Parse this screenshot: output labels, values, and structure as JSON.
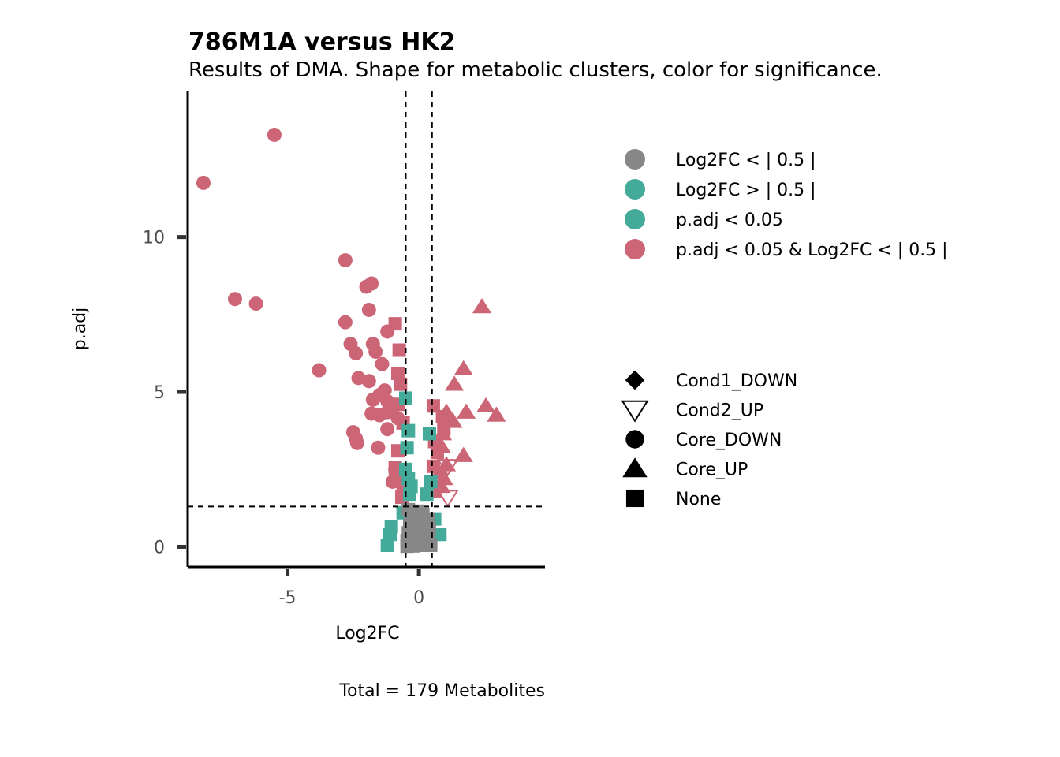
{
  "chart_data": {
    "type": "scatter",
    "title": "786M1A versus HK2",
    "subtitle": "Results of DMA. Shape for metabolic clusters, color for significance.",
    "xlabel": "Log2FC",
    "ylabel": "p.adj",
    "caption": "Total = 179 Metabolites",
    "xlim": [
      -8.8,
      4.8
    ],
    "ylim": [
      -0.65,
      14.7
    ],
    "x_ticks": [
      -5,
      0
    ],
    "x_tick_labels": [
      "-5",
      "0"
    ],
    "y_ticks": [
      0,
      5,
      10
    ],
    "y_tick_labels": [
      "0",
      "5",
      "10"
    ],
    "grid": false,
    "reference_lines": {
      "vertical": [
        -0.5,
        0.5
      ],
      "horizontal": [
        1.3
      ]
    },
    "colors": {
      "grey": "#878787",
      "teal": "#44AA99",
      "rose": "#CC6677"
    },
    "color_legend": [
      {
        "label": "Log2FC  < | 0.5 |",
        "color": "grey"
      },
      {
        "label": "Log2FC  > | 0.5 |",
        "color": "teal"
      },
      {
        "label": "p.adj  <  0.05",
        "color": "teal"
      },
      {
        "label": "p.adj  <  0.05  &  Log2FC  < | 0.5 |",
        "color": "rose"
      }
    ],
    "shape_legend": [
      {
        "label": "Cond1_DOWN",
        "shape": "diamond"
      },
      {
        "label": "Cond2_UP",
        "shape": "triangle-down-open"
      },
      {
        "label": "Core_DOWN",
        "shape": "circle"
      },
      {
        "label": "Core_UP",
        "shape": "triangle-up"
      },
      {
        "label": "None",
        "shape": "square"
      }
    ],
    "legend_position": "right",
    "points": [
      {
        "x": -5.5,
        "y": 13.3,
        "shape": "circle",
        "color": "rose"
      },
      {
        "x": -8.2,
        "y": 11.75,
        "shape": "circle",
        "color": "rose"
      },
      {
        "x": -2.8,
        "y": 9.25,
        "shape": "circle",
        "color": "rose"
      },
      {
        "x": -1.8,
        "y": 8.5,
        "shape": "circle",
        "color": "rose"
      },
      {
        "x": -2.0,
        "y": 8.4,
        "shape": "circle",
        "color": "rose"
      },
      {
        "x": -7.0,
        "y": 8.0,
        "shape": "circle",
        "color": "rose"
      },
      {
        "x": -6.2,
        "y": 7.85,
        "shape": "circle",
        "color": "rose"
      },
      {
        "x": -1.9,
        "y": 7.65,
        "shape": "circle",
        "color": "rose"
      },
      {
        "x": -2.8,
        "y": 7.25,
        "shape": "circle",
        "color": "rose"
      },
      {
        "x": -1.2,
        "y": 6.95,
        "shape": "circle",
        "color": "rose"
      },
      {
        "x": -2.6,
        "y": 6.55,
        "shape": "circle",
        "color": "rose"
      },
      {
        "x": -1.75,
        "y": 6.55,
        "shape": "circle",
        "color": "rose"
      },
      {
        "x": -2.4,
        "y": 6.25,
        "shape": "circle",
        "color": "rose"
      },
      {
        "x": -1.65,
        "y": 6.3,
        "shape": "circle",
        "color": "rose"
      },
      {
        "x": -1.4,
        "y": 5.9,
        "shape": "circle",
        "color": "rose"
      },
      {
        "x": -3.8,
        "y": 5.7,
        "shape": "circle",
        "color": "rose"
      },
      {
        "x": -2.3,
        "y": 5.45,
        "shape": "circle",
        "color": "rose"
      },
      {
        "x": -1.9,
        "y": 5.35,
        "shape": "circle",
        "color": "rose"
      },
      {
        "x": -1.3,
        "y": 5.05,
        "shape": "circle",
        "color": "rose"
      },
      {
        "x": -1.5,
        "y": 4.9,
        "shape": "circle",
        "color": "rose"
      },
      {
        "x": -1.75,
        "y": 4.75,
        "shape": "circle",
        "color": "rose"
      },
      {
        "x": -1.2,
        "y": 4.7,
        "shape": "circle",
        "color": "rose"
      },
      {
        "x": -1.0,
        "y": 4.5,
        "shape": "circle",
        "color": "rose"
      },
      {
        "x": -1.2,
        "y": 4.35,
        "shape": "circle",
        "color": "rose"
      },
      {
        "x": -1.8,
        "y": 4.3,
        "shape": "circle",
        "color": "rose"
      },
      {
        "x": -1.5,
        "y": 4.25,
        "shape": "circle",
        "color": "rose"
      },
      {
        "x": -0.8,
        "y": 4.15,
        "shape": "circle",
        "color": "rose"
      },
      {
        "x": -1.2,
        "y": 3.8,
        "shape": "circle",
        "color": "rose"
      },
      {
        "x": -2.5,
        "y": 3.7,
        "shape": "circle",
        "color": "rose"
      },
      {
        "x": -2.4,
        "y": 3.5,
        "shape": "circle",
        "color": "rose"
      },
      {
        "x": -2.35,
        "y": 3.35,
        "shape": "circle",
        "color": "rose"
      },
      {
        "x": -1.55,
        "y": 3.2,
        "shape": "circle",
        "color": "rose"
      },
      {
        "x": -1.0,
        "y": 2.1,
        "shape": "circle",
        "color": "rose"
      },
      {
        "x": -0.9,
        "y": 2.5,
        "shape": "circle",
        "color": "rose"
      },
      {
        "x": -0.9,
        "y": 7.2,
        "shape": "square",
        "color": "rose"
      },
      {
        "x": -0.75,
        "y": 6.35,
        "shape": "square",
        "color": "rose"
      },
      {
        "x": -0.8,
        "y": 5.6,
        "shape": "square",
        "color": "rose"
      },
      {
        "x": -0.7,
        "y": 5.25,
        "shape": "square",
        "color": "rose"
      },
      {
        "x": -0.8,
        "y": 4.6,
        "shape": "square",
        "color": "rose"
      },
      {
        "x": -0.6,
        "y": 4.0,
        "shape": "square",
        "color": "rose"
      },
      {
        "x": -0.8,
        "y": 3.1,
        "shape": "square",
        "color": "rose"
      },
      {
        "x": -0.9,
        "y": 2.55,
        "shape": "square",
        "color": "rose"
      },
      {
        "x": -0.7,
        "y": 2.3,
        "shape": "square",
        "color": "rose"
      },
      {
        "x": -0.6,
        "y": 1.9,
        "shape": "square",
        "color": "rose"
      },
      {
        "x": -0.65,
        "y": 1.6,
        "shape": "square",
        "color": "rose"
      },
      {
        "x": 0.55,
        "y": 4.55,
        "shape": "square",
        "color": "rose"
      },
      {
        "x": 0.9,
        "y": 4.2,
        "shape": "square",
        "color": "rose"
      },
      {
        "x": 0.95,
        "y": 3.8,
        "shape": "square",
        "color": "rose"
      },
      {
        "x": 0.6,
        "y": 3.4,
        "shape": "square",
        "color": "rose"
      },
      {
        "x": 0.7,
        "y": 3.05,
        "shape": "square",
        "color": "rose"
      },
      {
        "x": 0.55,
        "y": 2.6,
        "shape": "square",
        "color": "rose"
      },
      {
        "x": 0.8,
        "y": 2.4,
        "shape": "square",
        "color": "rose"
      },
      {
        "x": 0.6,
        "y": 1.8,
        "shape": "square",
        "color": "rose"
      },
      {
        "x": 2.4,
        "y": 7.75,
        "shape": "triangle-up",
        "color": "rose"
      },
      {
        "x": 1.7,
        "y": 5.75,
        "shape": "triangle-up",
        "color": "rose"
      },
      {
        "x": 1.35,
        "y": 5.25,
        "shape": "triangle-up",
        "color": "rose"
      },
      {
        "x": 2.55,
        "y": 4.55,
        "shape": "triangle-up",
        "color": "rose"
      },
      {
        "x": 2.95,
        "y": 4.25,
        "shape": "triangle-up",
        "color": "rose"
      },
      {
        "x": 1.8,
        "y": 4.35,
        "shape": "triangle-up",
        "color": "rose"
      },
      {
        "x": 1.05,
        "y": 4.35,
        "shape": "triangle-up",
        "color": "rose"
      },
      {
        "x": 1.3,
        "y": 4.05,
        "shape": "triangle-up",
        "color": "rose"
      },
      {
        "x": 0.9,
        "y": 3.65,
        "shape": "triangle-up",
        "color": "rose"
      },
      {
        "x": 0.85,
        "y": 3.25,
        "shape": "triangle-up",
        "color": "rose"
      },
      {
        "x": 1.7,
        "y": 2.95,
        "shape": "triangle-up",
        "color": "rose"
      },
      {
        "x": 1.05,
        "y": 2.65,
        "shape": "triangle-up",
        "color": "rose"
      },
      {
        "x": 0.95,
        "y": 2.2,
        "shape": "triangle-up",
        "color": "rose"
      },
      {
        "x": 0.85,
        "y": 1.95,
        "shape": "triangle-up",
        "color": "rose"
      },
      {
        "x": 1.1,
        "y": 2.6,
        "shape": "triangle-down-open",
        "color": "rose"
      },
      {
        "x": 1.1,
        "y": 1.6,
        "shape": "triangle-down-open",
        "color": "rose"
      },
      {
        "x": -0.5,
        "y": 4.8,
        "shape": "square",
        "color": "teal"
      },
      {
        "x": -0.4,
        "y": 3.75,
        "shape": "square",
        "color": "teal"
      },
      {
        "x": -0.45,
        "y": 3.2,
        "shape": "square",
        "color": "teal"
      },
      {
        "x": -0.5,
        "y": 2.5,
        "shape": "square",
        "color": "teal"
      },
      {
        "x": -0.4,
        "y": 2.2,
        "shape": "square",
        "color": "teal"
      },
      {
        "x": -0.3,
        "y": 1.95,
        "shape": "square",
        "color": "teal"
      },
      {
        "x": -0.35,
        "y": 1.7,
        "shape": "square",
        "color": "teal"
      },
      {
        "x": 0.4,
        "y": 3.65,
        "shape": "square",
        "color": "teal"
      },
      {
        "x": 0.45,
        "y": 2.1,
        "shape": "square",
        "color": "teal"
      },
      {
        "x": 0.3,
        "y": 1.7,
        "shape": "square",
        "color": "teal"
      },
      {
        "x": -0.6,
        "y": 1.1,
        "shape": "square",
        "color": "teal"
      },
      {
        "x": -1.05,
        "y": 0.65,
        "shape": "square",
        "color": "teal"
      },
      {
        "x": -1.1,
        "y": 0.4,
        "shape": "square",
        "color": "teal"
      },
      {
        "x": -1.2,
        "y": 0.05,
        "shape": "square",
        "color": "teal"
      },
      {
        "x": 0.8,
        "y": 0.4,
        "shape": "square",
        "color": "teal"
      },
      {
        "x": 0.6,
        "y": 0.9,
        "shape": "square",
        "color": "teal"
      },
      {
        "x": -0.4,
        "y": 1.2,
        "shape": "square",
        "color": "grey"
      },
      {
        "x": -0.3,
        "y": 0.95,
        "shape": "square",
        "color": "grey"
      },
      {
        "x": -0.35,
        "y": 0.7,
        "shape": "square",
        "color": "grey"
      },
      {
        "x": -0.4,
        "y": 0.45,
        "shape": "square",
        "color": "grey"
      },
      {
        "x": -0.45,
        "y": 0.2,
        "shape": "square",
        "color": "grey"
      },
      {
        "x": -0.45,
        "y": 0.02,
        "shape": "square",
        "color": "grey"
      },
      {
        "x": -0.2,
        "y": 1.1,
        "shape": "square",
        "color": "grey"
      },
      {
        "x": -0.15,
        "y": 0.8,
        "shape": "square",
        "color": "grey"
      },
      {
        "x": -0.2,
        "y": 0.5,
        "shape": "square",
        "color": "grey"
      },
      {
        "x": -0.25,
        "y": 0.25,
        "shape": "square",
        "color": "grey"
      },
      {
        "x": -0.2,
        "y": 0.03,
        "shape": "square",
        "color": "grey"
      },
      {
        "x": -0.05,
        "y": 1.15,
        "shape": "square",
        "color": "grey"
      },
      {
        "x": 0.0,
        "y": 0.85,
        "shape": "square",
        "color": "grey"
      },
      {
        "x": -0.05,
        "y": 0.55,
        "shape": "square",
        "color": "grey"
      },
      {
        "x": 0.0,
        "y": 0.3,
        "shape": "square",
        "color": "grey"
      },
      {
        "x": 0.05,
        "y": 0.05,
        "shape": "square",
        "color": "grey"
      },
      {
        "x": 0.15,
        "y": 1.05,
        "shape": "square",
        "color": "grey"
      },
      {
        "x": 0.2,
        "y": 0.75,
        "shape": "square",
        "color": "grey"
      },
      {
        "x": 0.15,
        "y": 0.45,
        "shape": "square",
        "color": "grey"
      },
      {
        "x": 0.25,
        "y": 0.15,
        "shape": "square",
        "color": "grey"
      },
      {
        "x": 0.35,
        "y": 0.9,
        "shape": "square",
        "color": "grey"
      },
      {
        "x": 0.4,
        "y": 0.6,
        "shape": "square",
        "color": "grey"
      },
      {
        "x": 0.35,
        "y": 0.3,
        "shape": "square",
        "color": "grey"
      },
      {
        "x": 0.45,
        "y": 0.05,
        "shape": "square",
        "color": "grey"
      },
      {
        "x": -0.3,
        "y": 0.35,
        "shape": "circle",
        "color": "grey"
      },
      {
        "x": 0.1,
        "y": 0.65,
        "shape": "circle",
        "color": "grey"
      },
      {
        "x": 0.3,
        "y": 0.2,
        "shape": "triangle-up",
        "color": "grey"
      },
      {
        "x": -0.1,
        "y": 0.15,
        "shape": "circle",
        "color": "grey"
      }
    ]
  }
}
